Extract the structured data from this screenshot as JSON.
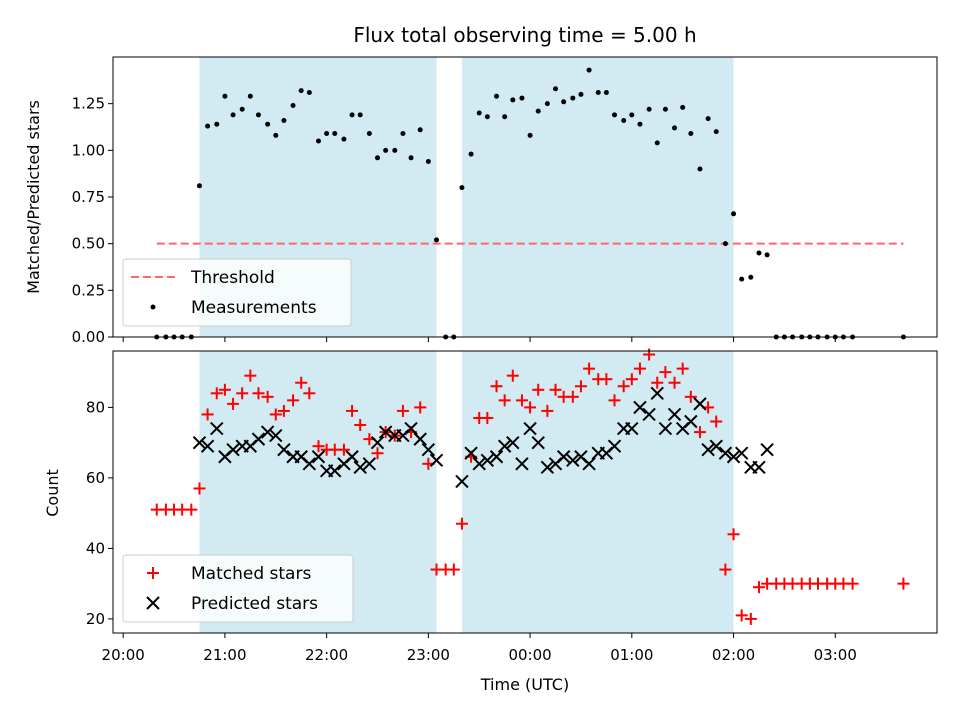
{
  "chart_data": [
    {
      "type": "scatter",
      "title": "Flux total observing time = 5.00 h",
      "ylabel": "Matched/Predicted stars",
      "xlabel": "",
      "x_unit": "hours after 20:00 UTC",
      "xlim": [
        -0.1,
        8.0
      ],
      "ylim": [
        0.0,
        1.5
      ],
      "yticks": [
        "0.00",
        "0.25",
        "0.50",
        "0.75",
        "1.00",
        "1.25"
      ],
      "shaded_intervals": [
        [
          0.75,
          3.08
        ],
        [
          3.33,
          6.0
        ]
      ],
      "shade_color": "#add8e6",
      "threshold": {
        "name": "Threshold",
        "y": 0.5,
        "x_range": [
          0.33,
          7.67
        ],
        "color": "#ff6666",
        "style": "dashed"
      },
      "legend": {
        "position": "lower-left",
        "entries": [
          "Threshold",
          "Measurements"
        ]
      },
      "series": [
        {
          "name": "Measurements",
          "marker": "dot",
          "color": "#000000",
          "x": [
            0.33,
            0.42,
            0.5,
            0.58,
            0.67,
            0.75,
            0.83,
            0.92,
            1.0,
            1.08,
            1.17,
            1.25,
            1.33,
            1.42,
            1.5,
            1.58,
            1.67,
            1.75,
            1.83,
            1.92,
            2.0,
            2.08,
            2.17,
            2.25,
            2.33,
            2.42,
            2.5,
            2.58,
            2.67,
            2.75,
            2.83,
            2.92,
            3.0,
            3.08,
            3.17,
            3.25,
            3.33,
            3.42,
            3.5,
            3.58,
            3.67,
            3.75,
            3.83,
            3.92,
            4.0,
            4.08,
            4.17,
            4.25,
            4.33,
            4.42,
            4.5,
            4.58,
            4.67,
            4.75,
            4.83,
            4.92,
            5.0,
            5.08,
            5.17,
            5.25,
            5.33,
            5.42,
            5.5,
            5.58,
            5.67,
            5.75,
            5.83,
            5.92,
            6.0,
            6.08,
            6.17,
            6.25,
            6.33,
            6.42,
            6.5,
            6.58,
            6.67,
            6.75,
            6.83,
            6.92,
            7.0,
            7.08,
            7.17,
            7.67
          ],
          "y": [
            0,
            0,
            0,
            0,
            0,
            0.81,
            1.13,
            1.14,
            1.29,
            1.19,
            1.22,
            1.29,
            1.19,
            1.14,
            1.08,
            1.16,
            1.24,
            1.32,
            1.31,
            1.05,
            1.09,
            1.09,
            1.06,
            1.19,
            1.19,
            1.09,
            0.96,
            1.0,
            1.0,
            1.09,
            0.96,
            1.11,
            0.94,
            0.52,
            0,
            0,
            0.8,
            0.98,
            1.2,
            1.18,
            1.29,
            1.18,
            1.27,
            1.28,
            1.08,
            1.21,
            1.25,
            1.33,
            1.26,
            1.28,
            1.3,
            1.43,
            1.31,
            1.31,
            1.19,
            1.16,
            1.19,
            1.14,
            1.22,
            1.04,
            1.22,
            1.12,
            1.23,
            1.09,
            0.9,
            1.17,
            1.1,
            0.5,
            0.66,
            0.31,
            0.32,
            0.45,
            0.44,
            0,
            0,
            0,
            0,
            0,
            0,
            0,
            0,
            0,
            0,
            0
          ]
        }
      ]
    },
    {
      "type": "scatter",
      "title": "",
      "ylabel": "Count",
      "xlabel": "Time (UTC)",
      "x_unit": "hours after 20:00 UTC",
      "xlim": [
        -0.1,
        8.0
      ],
      "ylim": [
        16,
        96
      ],
      "yticks": [
        "20",
        "40",
        "60",
        "80"
      ],
      "xticks": [
        "20:00",
        "21:00",
        "22:00",
        "23:00",
        "00:00",
        "01:00",
        "02:00",
        "03:00"
      ],
      "shaded_intervals": [
        [
          0.75,
          3.08
        ],
        [
          3.33,
          6.0
        ]
      ],
      "shade_color": "#add8e6",
      "legend": {
        "position": "lower-left",
        "entries": [
          "Matched stars",
          "Predicted stars"
        ]
      },
      "series": [
        {
          "name": "Matched stars",
          "marker": "plus",
          "color": "#ff0000",
          "x": [
            0.33,
            0.42,
            0.5,
            0.58,
            0.67,
            0.75,
            0.83,
            0.92,
            1.0,
            1.08,
            1.17,
            1.25,
            1.33,
            1.42,
            1.5,
            1.58,
            1.67,
            1.75,
            1.83,
            1.92,
            2.0,
            2.08,
            2.17,
            2.25,
            2.33,
            2.42,
            2.5,
            2.58,
            2.67,
            2.75,
            2.83,
            2.92,
            3.0,
            3.08,
            3.17,
            3.25,
            3.33,
            3.42,
            3.5,
            3.58,
            3.67,
            3.75,
            3.83,
            3.92,
            4.0,
            4.08,
            4.17,
            4.25,
            4.33,
            4.42,
            4.5,
            4.58,
            4.67,
            4.75,
            4.83,
            4.92,
            5.0,
            5.08,
            5.17,
            5.25,
            5.33,
            5.42,
            5.5,
            5.58,
            5.67,
            5.75,
            5.83,
            5.92,
            6.0,
            6.08,
            6.17,
            6.25,
            6.33,
            6.42,
            6.5,
            6.58,
            6.67,
            6.75,
            6.83,
            6.92,
            7.0,
            7.08,
            7.17,
            7.67
          ],
          "y": [
            51,
            51,
            51,
            51,
            51,
            57,
            78,
            84,
            85,
            81,
            84,
            89,
            84,
            83,
            78,
            79,
            82,
            87,
            84,
            69,
            68,
            68,
            68,
            79,
            75,
            71,
            67,
            73,
            72,
            79,
            73,
            80,
            64,
            34,
            34,
            34,
            47,
            66,
            77,
            77,
            86,
            82,
            89,
            82,
            80,
            85,
            79,
            85,
            83,
            83,
            86,
            91,
            88,
            88,
            82,
            86,
            88,
            91,
            95,
            87,
            90,
            87,
            91,
            83,
            73,
            80,
            76,
            34,
            44,
            21,
            20,
            29,
            30,
            30,
            30,
            30,
            30,
            30,
            30,
            30,
            30,
            30,
            30,
            30
          ]
        },
        {
          "name": "Predicted stars",
          "marker": "x",
          "color": "#000000",
          "x": [
            0.75,
            0.83,
            0.92,
            1.0,
            1.08,
            1.17,
            1.25,
            1.33,
            1.42,
            1.5,
            1.58,
            1.67,
            1.75,
            1.83,
            1.92,
            2.0,
            2.08,
            2.17,
            2.25,
            2.33,
            2.42,
            2.5,
            2.58,
            2.67,
            2.75,
            2.83,
            2.92,
            3.0,
            3.08,
            3.33,
            3.42,
            3.5,
            3.58,
            3.67,
            3.75,
            3.83,
            3.92,
            4.0,
            4.08,
            4.17,
            4.25,
            4.33,
            4.42,
            4.5,
            4.58,
            4.67,
            4.75,
            4.83,
            4.92,
            5.0,
            5.08,
            5.17,
            5.25,
            5.33,
            5.42,
            5.5,
            5.58,
            5.67,
            5.75,
            5.83,
            5.92,
            6.0,
            6.08,
            6.17,
            6.25,
            6.33
          ],
          "y": [
            70,
            69,
            74,
            66,
            68,
            69,
            69,
            71,
            73,
            72,
            68,
            66,
            66,
            64,
            66,
            62,
            62,
            64,
            66,
            63,
            64,
            70,
            73,
            72,
            72,
            74,
            71,
            68,
            65,
            59,
            67,
            64,
            65,
            66,
            69,
            70,
            64,
            74,
            70,
            63,
            64,
            66,
            65,
            66,
            64,
            67,
            67,
            69,
            74,
            74,
            80,
            78,
            84,
            74,
            78,
            74,
            76,
            81,
            68,
            69,
            67,
            66,
            67,
            63,
            63,
            68
          ]
        }
      ]
    }
  ]
}
